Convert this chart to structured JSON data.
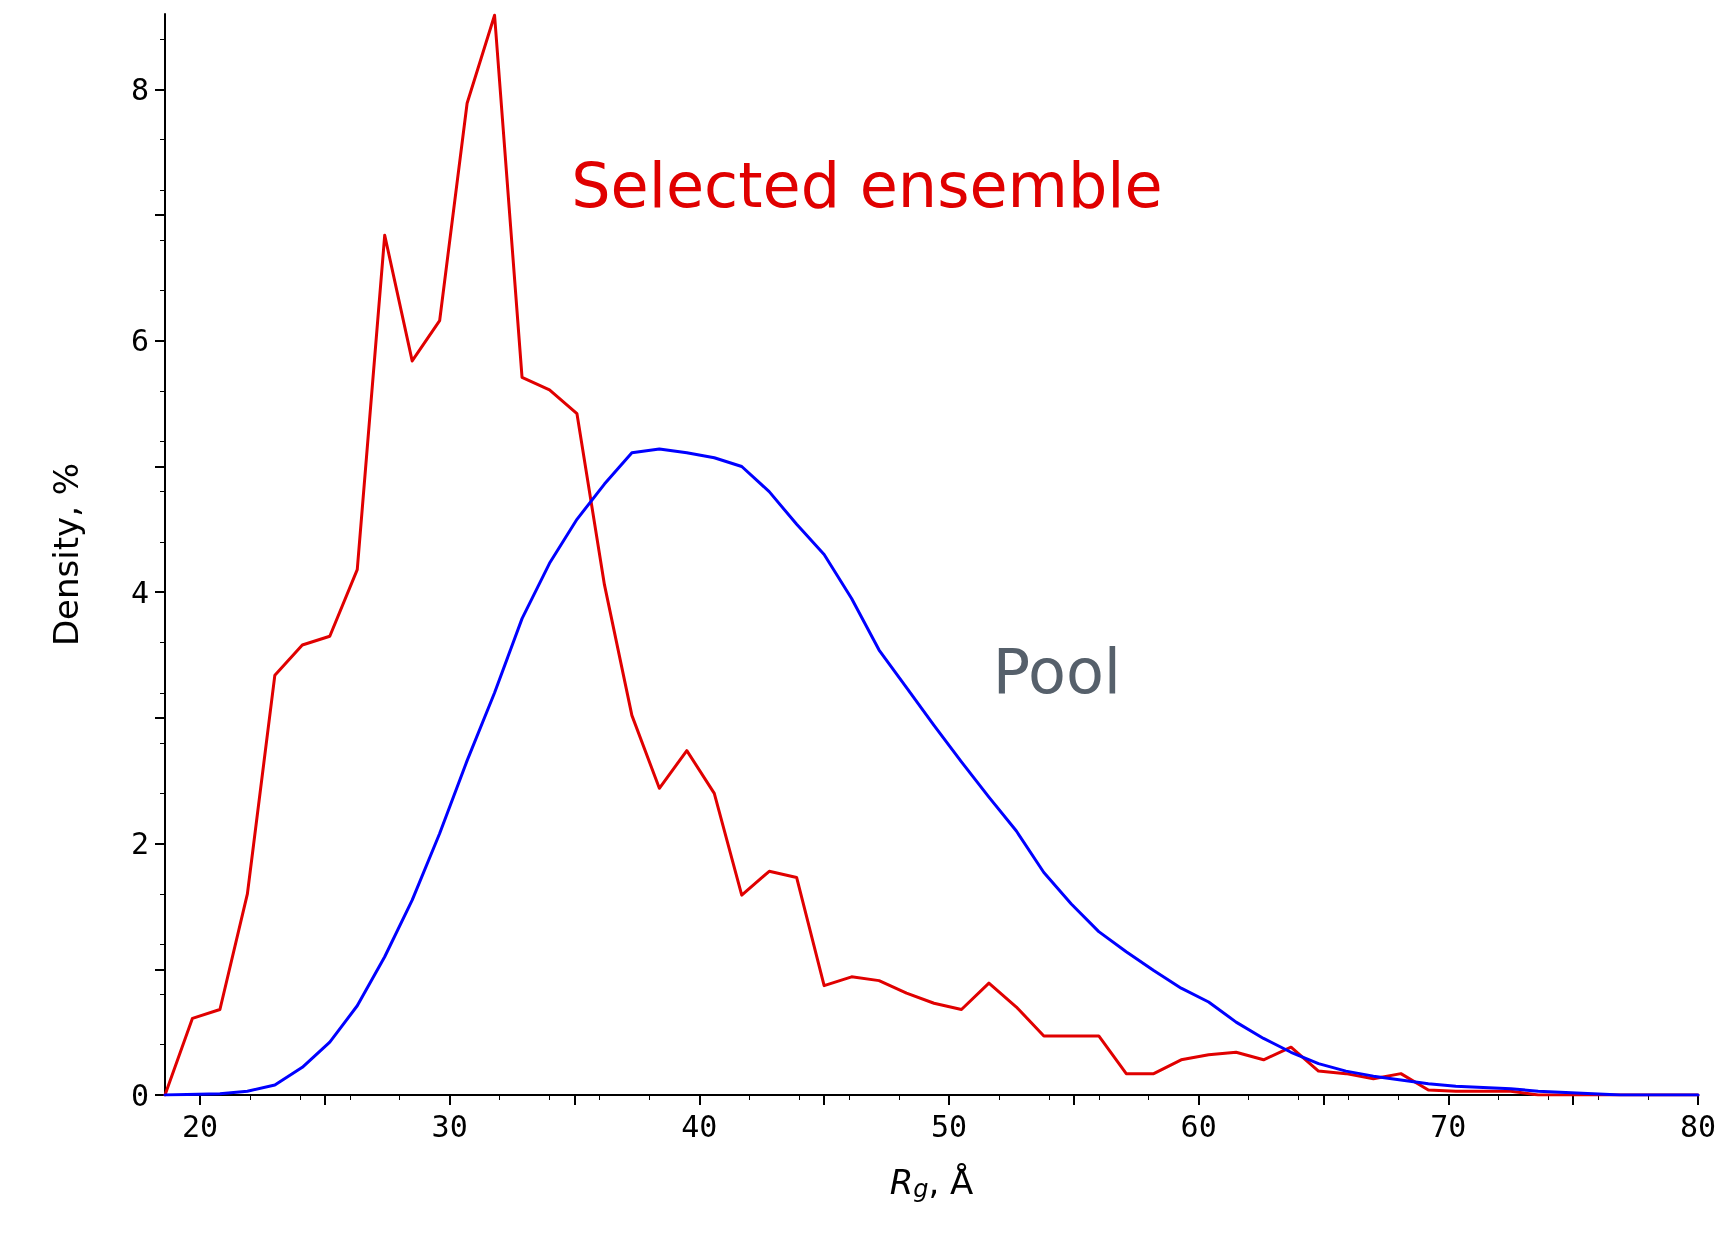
{
  "chart_data": {
    "type": "line",
    "xlabel": "R$_{g}$, Å",
    "ylabel": "Density, %",
    "xlim": [
      18.6,
      80
    ],
    "xticks": [
      20,
      {
        "value": 25,
        "label": null
      },
      30,
      {
        "value": 35,
        "label": null
      },
      40,
      {
        "value": 45,
        "label": null
      },
      50,
      {
        "value": 55,
        "label": null
      },
      60,
      {
        "value": 65,
        "label": null
      },
      70,
      {
        "value": 75,
        "label": null
      },
      80
    ],
    "ylim": [
      0,
      8.6
    ],
    "yticks": [
      0,
      {
        "value": 1,
        "label": null
      },
      2,
      {
        "value": 3,
        "label": null
      },
      4,
      {
        "value": 5,
        "label": null
      },
      6,
      {
        "value": 7,
        "label": null
      },
      8
    ],
    "grid": false,
    "legend": false,
    "marker": "none",
    "line_style": "solid",
    "series": [
      {
        "name": "Selected ensemble",
        "color": "#e00000",
        "x": [
          18.6,
          19.7,
          20.8,
          21.9,
          23.0,
          24.1,
          25.2,
          26.3,
          27.4,
          28.5,
          29.6,
          30.7,
          31.8,
          32.9,
          34.0,
          35.1,
          36.2,
          37.3,
          38.4,
          39.5,
          40.6,
          41.7,
          42.8,
          43.9,
          45.0,
          46.1,
          47.2,
          48.3,
          49.4,
          50.5,
          51.6,
          52.7,
          53.8,
          54.9,
          56.0,
          57.1,
          58.2,
          59.3,
          60.4,
          61.5,
          62.6,
          63.7,
          64.8,
          65.9,
          67.0,
          68.1,
          69.2,
          70.3,
          72.5,
          73.6,
          80
        ],
        "values": [
          0,
          0.61,
          0.68,
          1.6,
          3.34,
          3.58,
          3.65,
          4.18,
          6.84,
          5.84,
          6.16,
          7.89,
          8.59,
          5.71,
          5.61,
          5.42,
          4.06,
          3.02,
          2.44,
          2.74,
          2.4,
          1.59,
          1.78,
          1.73,
          0.87,
          0.94,
          0.91,
          0.81,
          0.73,
          0.68,
          0.89,
          0.7,
          0.47,
          0.47,
          0.47,
          0.17,
          0.17,
          0.28,
          0.32,
          0.34,
          0.28,
          0.38,
          0.19,
          0.17,
          0.13,
          0.17,
          0.04,
          0.03,
          0.03,
          0,
          0
        ]
      },
      {
        "name": "Pool",
        "color": "#0000ff",
        "x": [
          18.6,
          20.8,
          21.9,
          23.0,
          24.1,
          25.2,
          26.3,
          27.4,
          28.5,
          29.6,
          30.7,
          31.8,
          32.9,
          34.0,
          35.1,
          36.2,
          37.3,
          38.4,
          39.5,
          40.6,
          41.7,
          42.8,
          43.9,
          45.0,
          46.1,
          47.2,
          48.3,
          49.4,
          50.5,
          51.6,
          52.7,
          53.8,
          54.9,
          56.0,
          57.1,
          58.2,
          59.3,
          60.4,
          61.5,
          62.6,
          63.7,
          64.8,
          65.9,
          67.0,
          68.1,
          69.2,
          70.3,
          71.4,
          72.5,
          73.6,
          74.7,
          75.8,
          76.9,
          80
        ],
        "values": [
          0,
          0.01,
          0.03,
          0.08,
          0.22,
          0.42,
          0.71,
          1.1,
          1.55,
          2.08,
          2.66,
          3.2,
          3.79,
          4.23,
          4.58,
          4.86,
          5.11,
          5.14,
          5.11,
          5.07,
          5.0,
          4.8,
          4.54,
          4.3,
          3.95,
          3.54,
          3.24,
          2.94,
          2.65,
          2.37,
          2.1,
          1.77,
          1.52,
          1.3,
          1.14,
          0.99,
          0.85,
          0.74,
          0.58,
          0.45,
          0.34,
          0.25,
          0.19,
          0.15,
          0.12,
          0.09,
          0.07,
          0.06,
          0.05,
          0.03,
          0.02,
          0.01,
          0,
          0
        ]
      }
    ]
  }
}
